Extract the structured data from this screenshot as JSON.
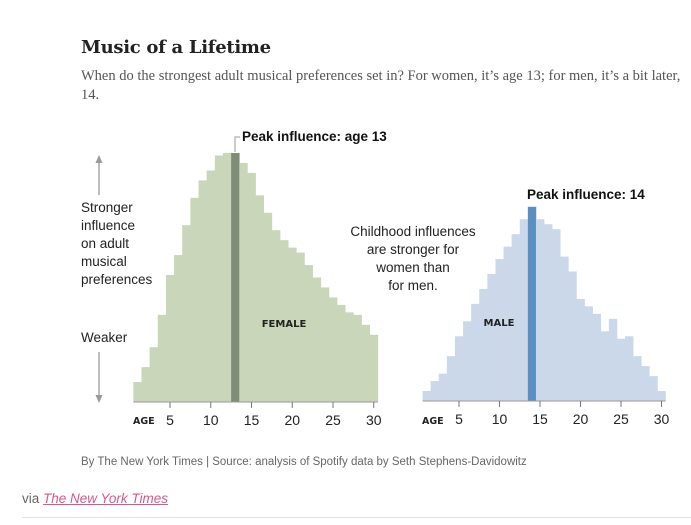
{
  "header": {
    "title": "Music of a Lifetime",
    "subtitle": "When do the strongest adult musical preferences set in? For women, it’s age 13; for men, it’s a bit later, 14."
  },
  "annotations": {
    "y_axis_stronger": [
      "Stronger",
      "influence",
      "on adult",
      "musical",
      "preferences"
    ],
    "y_axis_weaker": "Weaker",
    "middle_note": [
      "Childhood influences",
      "are stronger for",
      "women than",
      "for men."
    ]
  },
  "footer": {
    "source": "By The New York Times | Source: analysis of Spotify data by Seth Stephens-Davidowitz",
    "via_prefix": "via",
    "via_link": "The New York Times"
  },
  "colors": {
    "female_bar": "#c9d6b9",
    "female_peak": "#7f8d78",
    "male_bar": "#cbd8ea",
    "male_peak": "#5b8fc2",
    "link": "#d6578f"
  },
  "chart_data": [
    {
      "type": "bar",
      "title": "FEMALE",
      "xlabel": "AGE",
      "ylabel": "Influence on adult musical preferences (relative, Weaker → Stronger)",
      "x": [
        1,
        2,
        3,
        4,
        5,
        6,
        7,
        8,
        9,
        10,
        11,
        12,
        13,
        14,
        15,
        16,
        17,
        18,
        19,
        20,
        21,
        22,
        23,
        24,
        25,
        26,
        27,
        28,
        29,
        30
      ],
      "values": [
        8,
        14,
        22,
        35,
        51,
        59,
        71,
        82,
        89,
        93,
        99,
        100,
        100,
        96,
        92,
        83,
        76,
        69,
        65,
        62,
        60,
        55,
        50,
        46,
        42,
        39,
        36,
        35,
        31,
        27
      ],
      "xticks": [
        5,
        10,
        15,
        20,
        25,
        30
      ],
      "xlim": [
        0.5,
        30.5
      ],
      "ylim": [
        0,
        100
      ],
      "peak": {
        "age": 13,
        "label": "Peak influence: age 13"
      },
      "grid": false
    },
    {
      "type": "bar",
      "title": "MALE",
      "xlabel": "AGE",
      "ylabel": "Influence on adult musical preferences (relative, Weaker → Stronger)",
      "x": [
        1,
        2,
        3,
        4,
        5,
        6,
        7,
        8,
        9,
        10,
        11,
        12,
        13,
        14,
        15,
        16,
        17,
        18,
        19,
        20,
        21,
        22,
        23,
        24,
        25,
        26,
        27,
        28,
        29,
        30
      ],
      "values": [
        4,
        8,
        11,
        18,
        26,
        32,
        39,
        45,
        51,
        57,
        62,
        67,
        73,
        78,
        73,
        71,
        69,
        58,
        52,
        41,
        38,
        35,
        28,
        33,
        25,
        26,
        18,
        14,
        10,
        4
      ],
      "xticks": [
        5,
        10,
        15,
        20,
        25,
        30
      ],
      "xlim": [
        0.5,
        30.5
      ],
      "ylim": [
        0,
        100
      ],
      "peak": {
        "age": 14,
        "label": "Peak influence: 14"
      },
      "grid": false
    }
  ]
}
